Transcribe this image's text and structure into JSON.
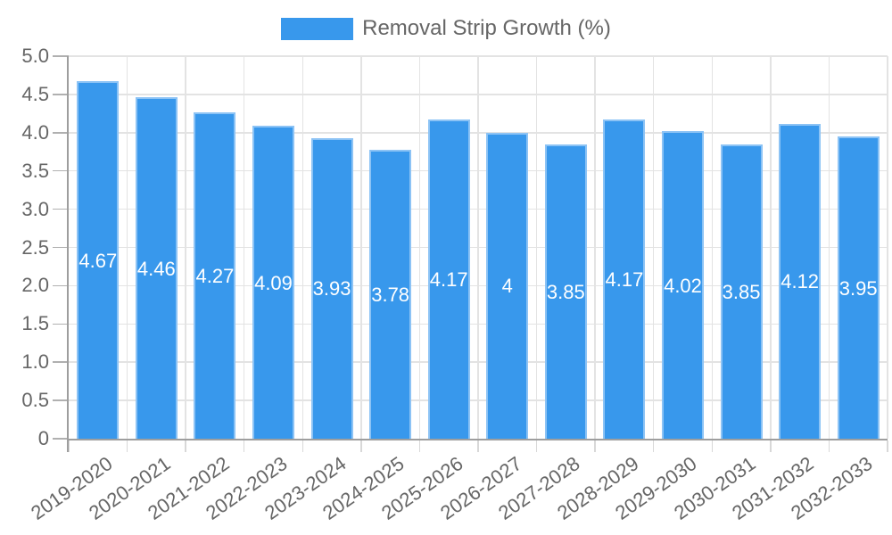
{
  "legend": {
    "label": "Removal Strip Growth (%)"
  },
  "chart_data": {
    "type": "bar",
    "title": "",
    "legend_label": "Removal Strip Growth (%)",
    "legend_position": "top",
    "categories": [
      "2019-2020",
      "2020-2021",
      "2021-2022",
      "2022-2023",
      "2023-2024",
      "2024-2025",
      "2025-2026",
      "2026-2027",
      "2027-2028",
      "2028-2029",
      "2029-2030",
      "2030-2031",
      "2031-2032",
      "2032-2033"
    ],
    "series": [
      {
        "name": "Removal Strip Growth (%)",
        "values": [
          4.67,
          4.46,
          4.27,
          4.09,
          3.93,
          3.78,
          4.17,
          4,
          3.85,
          4.17,
          4.02,
          3.85,
          4.12,
          3.95
        ]
      }
    ],
    "value_labels": [
      "4.67",
      "4.46",
      "4.27",
      "4.09",
      "3.93",
      "3.78",
      "4.17",
      "4",
      "3.85",
      "4.17",
      "4.02",
      "3.85",
      "4.12",
      "3.95"
    ],
    "xlabel": "",
    "ylabel": "",
    "ylim": [
      0,
      5
    ],
    "ytick_step": 0.5,
    "ytick_labels": [
      "0",
      "0.5",
      "1.0",
      "1.5",
      "2.0",
      "2.5",
      "3.0",
      "3.5",
      "4.0",
      "4.5",
      "5.0"
    ],
    "grid": true
  },
  "theme": {
    "background": "#FFFFFF",
    "bar_color": "#3898EC",
    "bar_border_color": "#8CC3F5",
    "grid_color": "#E3E3E3",
    "axis_color": "#9E9E9E",
    "y_tick_color": "#B0B0B0",
    "x_tick_color": "#D8D8D8",
    "label_color": "#666666",
    "value_label_color": "#FFFFFF"
  }
}
